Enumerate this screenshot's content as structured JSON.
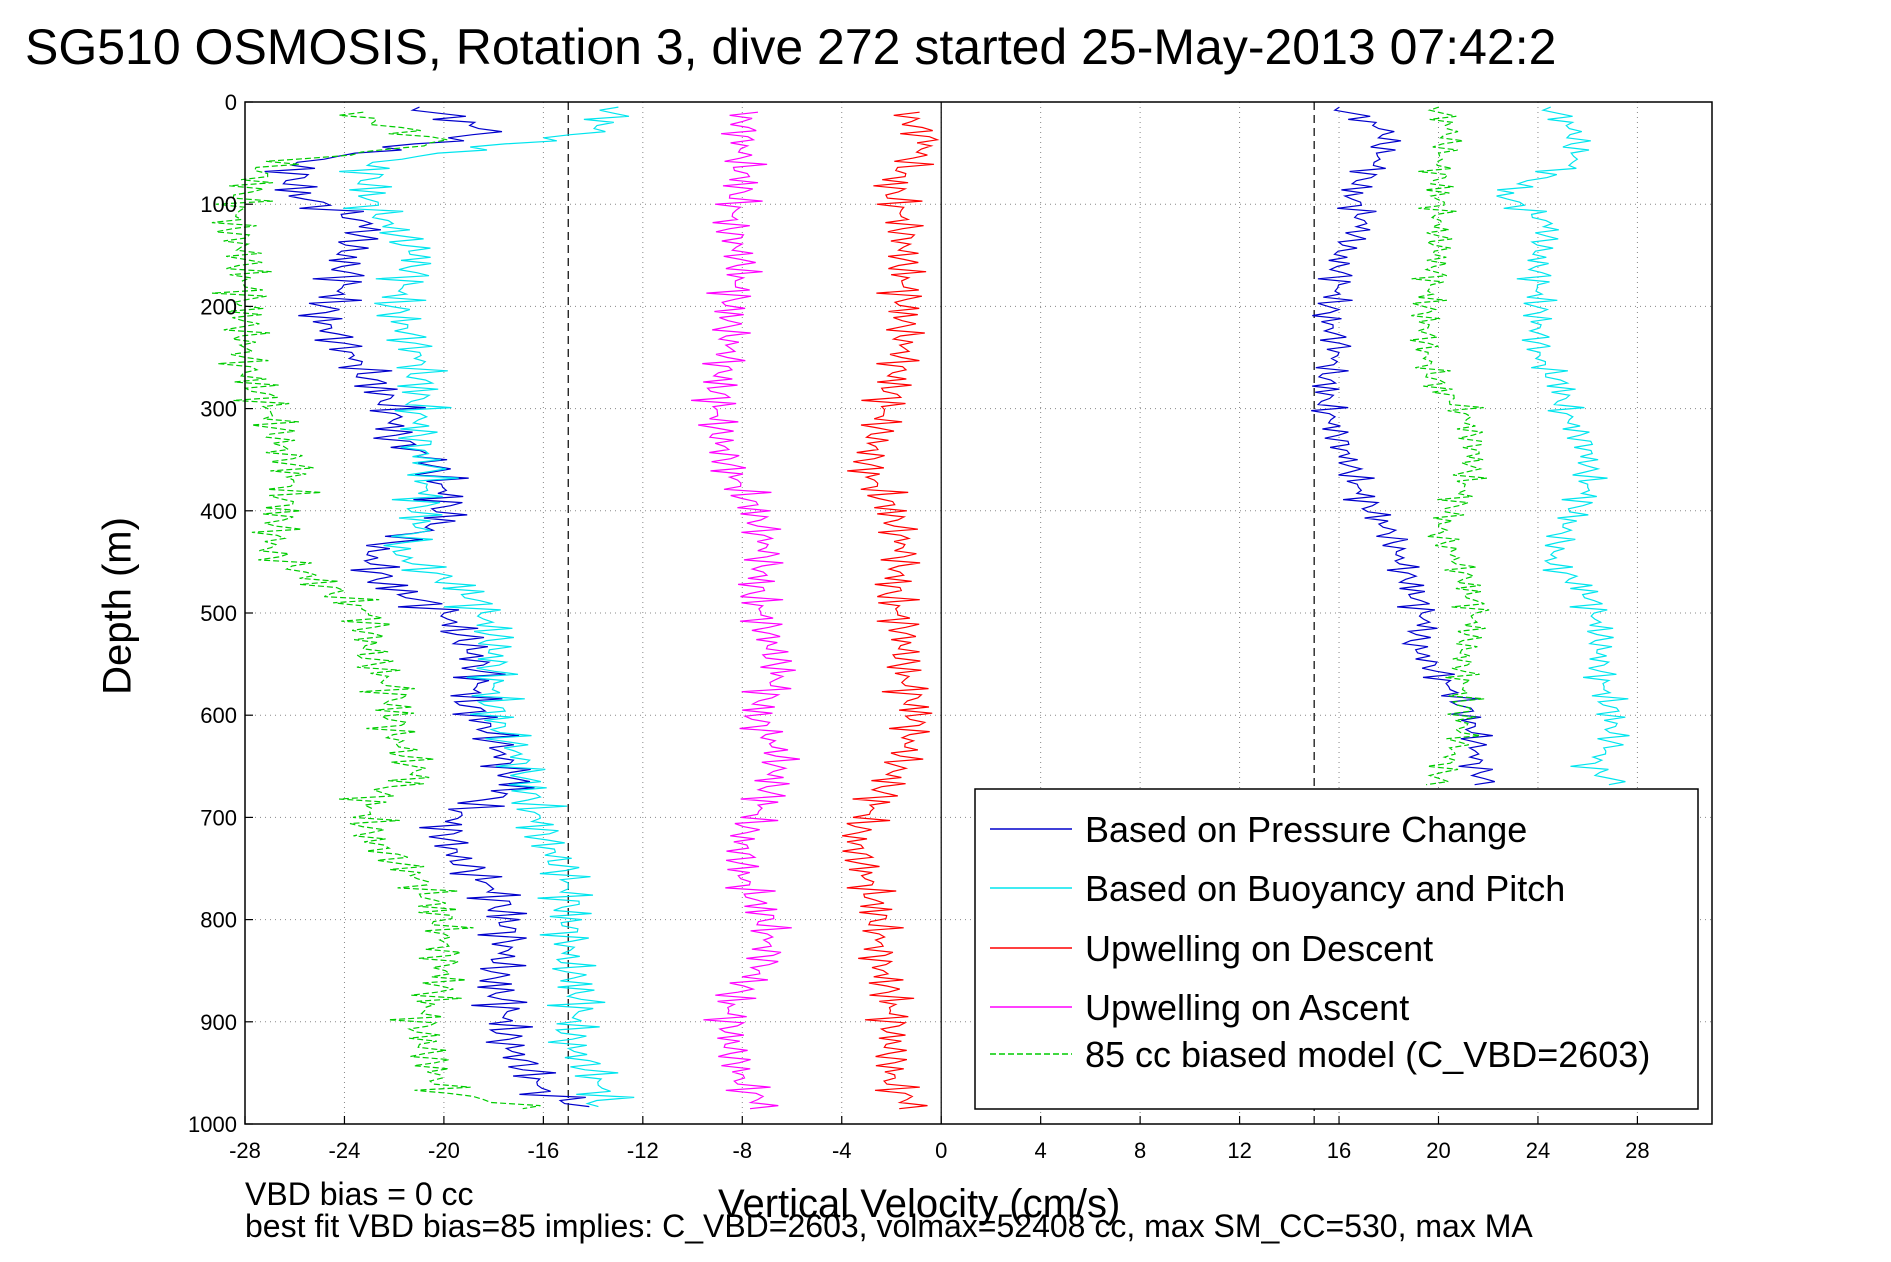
{
  "title": "SG510 OSMOSIS, Rotation 3, dive 272 started 25-May-2013 07:42:2",
  "notes": {
    "line1": "VBD bias = 0 cc",
    "line2": "best fit VBD bias=85 implies: C_VBD=2603, volmax=52408 cc, max SM_CC=530, max MA"
  },
  "chart_data": {
    "type": "line",
    "title": "SG510 OSMOSIS, Rotation 3, dive 272 started 25-May-2013 07:42:2",
    "xlabel": "Vertical Velocity (cm/s)",
    "ylabel": "Depth (m)",
    "xlim": [
      -28,
      31
    ],
    "ylim": [
      1000,
      0
    ],
    "y_reversed": true,
    "grid": true,
    "grid_style": "dotted",
    "xticks": [
      -28,
      -24,
      -20,
      -16,
      -12,
      -8,
      -4,
      0,
      4,
      8,
      12,
      16,
      20,
      24,
      28
    ],
    "yticks": [
      0,
      100,
      200,
      300,
      400,
      500,
      600,
      700,
      800,
      900,
      1000
    ],
    "reference_lines": [
      {
        "x": -15,
        "style": "dashed",
        "color": "#000000"
      },
      {
        "x": 0,
        "style": "solid",
        "color": "#000000"
      },
      {
        "x": 15,
        "style": "dashed",
        "color": "#000000"
      }
    ],
    "legend_position": "lower-right",
    "series": [
      {
        "name": "Based on Pressure Change",
        "color": "#0000cc",
        "style": "solid",
        "depth": [
          5,
          30,
          60,
          90,
          120,
          150,
          180,
          210,
          240,
          270,
          300,
          330,
          350,
          380,
          410,
          440,
          470,
          500,
          530,
          560,
          590,
          620,
          650,
          670,
          690,
          710,
          740,
          770,
          800,
          830,
          860,
          890,
          920,
          950,
          970,
          985
        ],
        "descent_velocity": [
          -21,
          -18,
          -26,
          -26,
          -23,
          -24,
          -24,
          -25,
          -24,
          -23,
          -22,
          -22,
          -20.5,
          -20,
          -20,
          -23,
          -22.5,
          -20,
          -19,
          -18.5,
          -19,
          -18,
          -17.5,
          -17,
          -19,
          -20,
          -19.5,
          -18,
          -17.5,
          -17.5,
          -18,
          -17.5,
          -17.5,
          -16.5,
          -16,
          -14
        ],
        "ascent_depth": [
          5,
          30,
          60,
          90,
          120,
          150,
          180,
          210,
          240,
          270,
          300,
          330,
          360,
          390,
          420,
          450,
          480,
          510,
          530,
          560,
          590,
          620,
          650,
          670
        ],
        "ascent_velocity": [
          16,
          18,
          17.5,
          16.5,
          17,
          16,
          16,
          15.5,
          16,
          15.5,
          15.5,
          16,
          16.5,
          17,
          18,
          18.5,
          19,
          19.5,
          19,
          20,
          21,
          21.5,
          21.5,
          22
        ]
      },
      {
        "name": "Based on Buoyancy and Pitch",
        "color": "#00e5ee",
        "style": "solid",
        "depth": [
          5,
          30,
          60,
          100,
          150,
          200,
          250,
          300,
          340,
          360,
          400,
          420,
          440,
          480,
          520,
          560,
          600,
          640,
          680,
          720,
          760,
          800,
          840,
          880,
          920,
          950,
          975,
          985
        ],
        "descent_velocity": [
          -13,
          -14,
          -23,
          -23,
          -21,
          -22,
          -21,
          -21,
          -21,
          -20.5,
          -21,
          -21,
          -22,
          -19,
          -18,
          -18,
          -18,
          -17,
          -16.5,
          -16,
          -15,
          -15,
          -15,
          -14.5,
          -15,
          -14,
          -13.5,
          -14
        ],
        "ascent_depth": [
          5,
          30,
          60,
          90,
          120,
          150,
          200,
          250,
          280,
          300,
          340,
          380,
          420,
          450,
          480,
          520,
          560,
          600,
          630,
          650,
          670
        ],
        "ascent_velocity": [
          24.5,
          25.5,
          25.5,
          22.5,
          24.5,
          24,
          24,
          24,
          25,
          25,
          26,
          26,
          25,
          24.5,
          26,
          26.5,
          26.5,
          27,
          27,
          26,
          27.5
        ]
      },
      {
        "name": "Upwelling on Descent",
        "color": "#ff0000",
        "style": "solid",
        "depth": [
          10,
          40,
          80,
          120,
          160,
          200,
          240,
          280,
          320,
          360,
          400,
          440,
          480,
          520,
          560,
          600,
          640,
          680,
          720,
          760,
          800,
          840,
          880,
          920,
          960,
          985
        ],
        "velocity": [
          -1.5,
          -0.5,
          -2,
          -1.5,
          -1.5,
          -1.5,
          -1.5,
          -2,
          -2.5,
          -3,
          -2,
          -1.5,
          -2,
          -1.5,
          -1.5,
          -1,
          -1.5,
          -2.5,
          -3.5,
          -3,
          -2.5,
          -2.5,
          -2,
          -2,
          -2,
          -1
        ]
      },
      {
        "name": "Upwelling on Ascent",
        "color": "#ff00ff",
        "style": "solid",
        "depth": [
          10,
          40,
          80,
          120,
          160,
          200,
          240,
          280,
          320,
          360,
          400,
          440,
          480,
          520,
          560,
          600,
          640,
          680,
          720,
          760,
          800,
          840,
          880,
          920,
          960,
          985
        ],
        "velocity": [
          -8,
          -8,
          -8,
          -8.5,
          -8,
          -8.5,
          -8.5,
          -9,
          -9,
          -8.5,
          -7.5,
          -7,
          -7.5,
          -7,
          -6.5,
          -7.5,
          -6.5,
          -7,
          -8,
          -8,
          -7,
          -7,
          -8.5,
          -8.5,
          -8,
          -7
        ]
      },
      {
        "name": "85 cc biased model (C_VBD=2603)",
        "color": "#00cc00",
        "style": "dashed",
        "depth": [
          10,
          40,
          60,
          90,
          120,
          150,
          180,
          220,
          260,
          300,
          340,
          360,
          400,
          440,
          470,
          500,
          540,
          580,
          620,
          660,
          680,
          720,
          760,
          800,
          860,
          900,
          940,
          970,
          985
        ],
        "descent_velocity": [
          -24,
          -20,
          -27,
          -28,
          -28.5,
          -28,
          -28,
          -28,
          -28,
          -27,
          -26.5,
          -26,
          -26.5,
          -27,
          -25,
          -23,
          -23,
          -22,
          -22,
          -21,
          -23,
          -23,
          -21,
          -20,
          -20,
          -21,
          -20.5,
          -20,
          -16
        ],
        "ascent_depth": [
          5,
          30,
          60,
          90,
          120,
          150,
          200,
          250,
          280,
          300,
          340,
          380,
          420,
          440,
          460,
          500,
          540,
          580,
          620,
          660,
          670
        ],
        "ascent_velocity": [
          20,
          20.5,
          20,
          20,
          20,
          20,
          19.5,
          19.5,
          20,
          21,
          21.5,
          21,
          20,
          20.5,
          21,
          21.5,
          21,
          21,
          21,
          20,
          20
        ]
      }
    ]
  }
}
